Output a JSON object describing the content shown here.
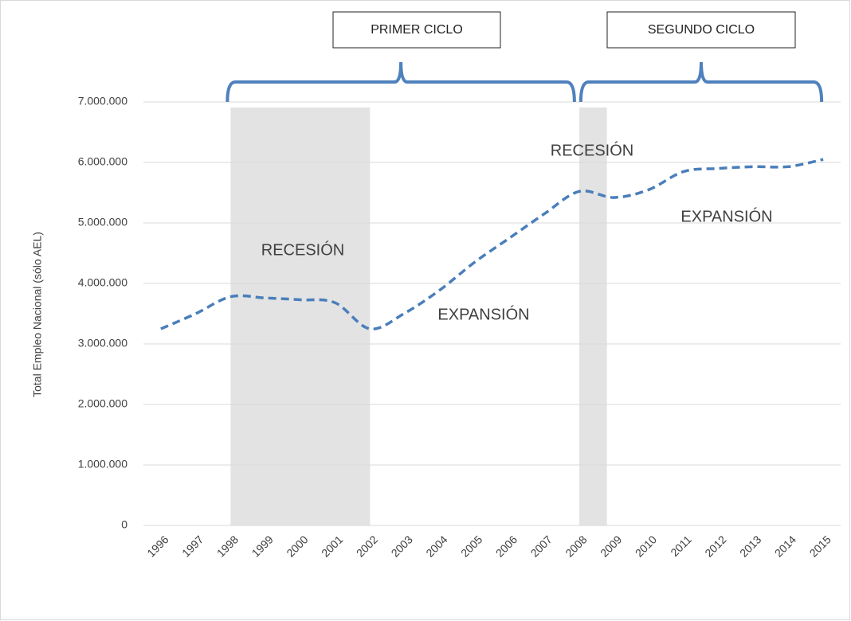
{
  "chart_data": {
    "type": "line",
    "y_label": "Total Empleo Nacional (sólo AEL)",
    "categories": [
      "1996",
      "1997",
      "1998",
      "1999",
      "2000",
      "2001",
      "2002",
      "2003",
      "2004",
      "2005",
      "2006",
      "2007",
      "2008",
      "2009",
      "2010",
      "2011",
      "2012",
      "2013",
      "2014",
      "2015"
    ],
    "series": [
      {
        "color": "#4a7ebb",
        "values": [
          3250000,
          3500000,
          3780000,
          3760000,
          3730000,
          3680000,
          3250000,
          3510000,
          3890000,
          4350000,
          4750000,
          5150000,
          5520000,
          5420000,
          5550000,
          5850000,
          5900000,
          5930000,
          5930000,
          6050000
        ]
      }
    ],
    "ylim": [
      0,
      7000000
    ],
    "yticks": [
      0,
      {
        "value": 1000000,
        "label": "1.000.000"
      },
      {
        "value": 2000000,
        "label": "2.000.000"
      },
      {
        "value": 3000000,
        "label": "3.000.000"
      },
      {
        "value": 4000000,
        "label": "4.000.000"
      },
      {
        "value": 5000000,
        "label": "5.000.000"
      },
      {
        "value": 6000000,
        "label": "6.000.000"
      },
      {
        "value": 7000000,
        "label": "7.000.000"
      }
    ],
    "grid": true,
    "shaded": [
      {
        "label": "RECESIÓN",
        "from": "1998",
        "to": "2002"
      },
      {
        "label": "RECESIÓN",
        "from": "2008",
        "to": "2009"
      }
    ],
    "annotations": [
      "EXPANSIÓN",
      "EXPANSIÓN"
    ],
    "cycles": [
      {
        "label": "PRIMER CICLO",
        "from": "1998",
        "to": "2008"
      },
      {
        "label": "SEGUNDO CICLO",
        "from": "2008",
        "to": "2015"
      }
    ]
  }
}
